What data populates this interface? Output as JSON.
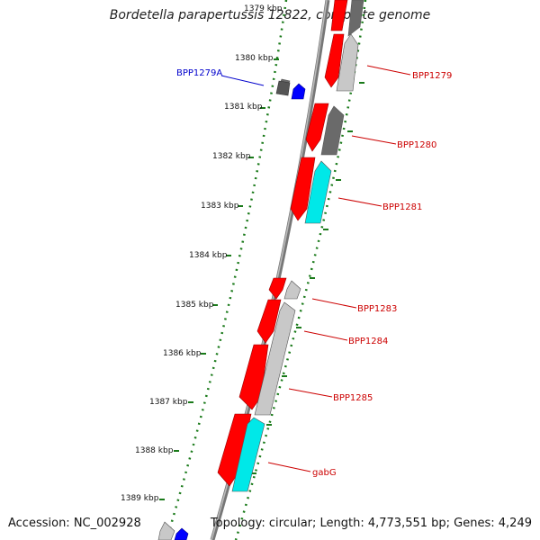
{
  "title": "Bordetella parapertussis 12822, complete genome",
  "accession": "Accession: NC_002928",
  "stats": "Topology: circular; Length: 4,773,551 bp; Genes: 4,249",
  "scale_labels": [
    "1379 kbp",
    "1380 kbp",
    "1381 kbp",
    "1382 kbp",
    "1383 kbp",
    "1384 kbp",
    "1385 kbp",
    "1386 kbp",
    "1387 kbp",
    "1388 kbp",
    "1389 kbp"
  ],
  "colors": {
    "forward": "#ff0000",
    "reverse_dark": "#6a6a6a",
    "reverse_light": "#c8c8c8",
    "reverse_cyan": "#00e8e8",
    "marker": "#0000ff",
    "label_red": "#cc0000",
    "label_blue": "#0000cc",
    "scale": "#1a7a1a"
  },
  "genes": [
    {
      "name": "BPP1279A",
      "color": "blue"
    },
    {
      "name": "BPP1279",
      "color": "red"
    },
    {
      "name": "BPP1280",
      "color": "red"
    },
    {
      "name": "BPP1281",
      "color": "red"
    },
    {
      "name": "BPP1283",
      "color": "red"
    },
    {
      "name": "BPP1284",
      "color": "red"
    },
    {
      "name": "BPP1285",
      "color": "red"
    },
    {
      "name": "gabG",
      "color": "red"
    }
  ]
}
